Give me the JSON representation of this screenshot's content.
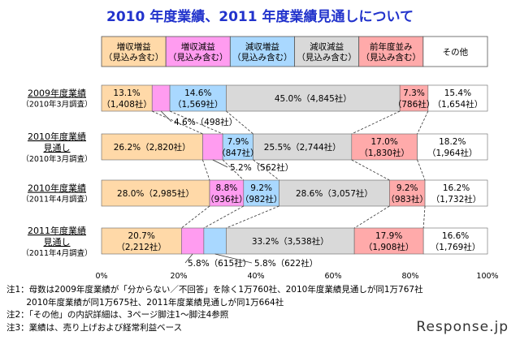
{
  "title": "2010 年度業績、2011 年度業績見通しについて",
  "chart_data": {
    "type": "bar",
    "orientation": "horizontal",
    "stacked": true,
    "categories": [
      {
        "lines": [
          "2009年度業績"
        ],
        "sub": "（2010年3月調査）"
      },
      {
        "lines": [
          "2010年度業績",
          "見通し"
        ],
        "sub": "（2010年3月調査）"
      },
      {
        "lines": [
          "2010年度業績"
        ],
        "sub": "（2011年4月調査）"
      },
      {
        "lines": [
          "2011年度業績",
          "見通し"
        ],
        "sub": "（2011年4月調査）"
      }
    ],
    "series": [
      {
        "name": "増収増益（見込み含む）",
        "header": [
          "増収増益",
          "（見込み含む）"
        ],
        "color": "#ffd9a8",
        "values": [
          13.1,
          26.2,
          28.0,
          20.7
        ],
        "labels": [
          [
            "13.1%",
            "（1,408社）"
          ],
          [
            "26.2%（2,820社）"
          ],
          [
            "28.0%（2,985社）"
          ],
          [
            "20.7%",
            "（2,212社）"
          ]
        ]
      },
      {
        "name": "増収減益（見込み含む）",
        "header": [
          "増収減益",
          "（見込み含む）"
        ],
        "color": "#ff9cf0",
        "values": [
          4.6,
          5.2,
          8.8,
          5.8
        ],
        "labels": [
          [
            "4.6%（498社）"
          ],
          [
            "5.2%（562社）"
          ],
          [
            "8.8%",
            "（936社）"
          ],
          [
            "5.8%（615社）"
          ]
        ]
      },
      {
        "name": "減収増益（見込み含む）",
        "header": [
          "減収増益",
          "（見込み含む）"
        ],
        "color": "#a9d8ff",
        "values": [
          14.6,
          7.9,
          9.2,
          5.8
        ],
        "labels": [
          [
            "14.6%",
            "（1,569社）"
          ],
          [
            "7.9%",
            "（847社）"
          ],
          [
            "9.2%",
            "（982社）"
          ],
          [
            "5.8%（622社）"
          ]
        ]
      },
      {
        "name": "減収減益（見込み含む）",
        "header": [
          "減収減益",
          "（見込み含む）"
        ],
        "color": "#d9d9d9",
        "values": [
          45.0,
          25.5,
          28.6,
          33.2
        ],
        "labels": [
          [
            "45.0%（4,845社）"
          ],
          [
            "25.5%（2,744社）"
          ],
          [
            "28.6%（3,057社）"
          ],
          [
            "33.2%（3,538社）"
          ]
        ]
      },
      {
        "name": "前年度並み（見込み含む）",
        "header": [
          "前年度並み",
          "（見込み含む）"
        ],
        "color": "#ffaaaa",
        "values": [
          7.3,
          17.0,
          9.2,
          17.9
        ],
        "labels": [
          [
            "7.3%",
            "（786社）"
          ],
          [
            "17.0%",
            "（1,830社）"
          ],
          [
            "9.2%",
            "（983社）"
          ],
          [
            "17.9%",
            "（1,908社）"
          ]
        ]
      },
      {
        "name": "その他",
        "header": [
          "その他"
        ],
        "color": "#ffffff",
        "values": [
          15.4,
          18.2,
          16.2,
          16.6
        ],
        "labels": [
          [
            "15.4%",
            "（1,654社）"
          ],
          [
            "18.2%",
            "（1,964社）"
          ],
          [
            "16.2%",
            "（1,732社）"
          ],
          [
            "16.6%",
            "（1,769社）"
          ]
        ]
      }
    ],
    "xlim": [
      0,
      100
    ],
    "ticks": [
      "0%",
      "20%",
      "40%",
      "60%",
      "80%",
      "100%"
    ],
    "tick_values": [
      0,
      20,
      40,
      60,
      80,
      100
    ],
    "grid": false,
    "legend": "top"
  },
  "notes": [
    "注1：母数は2009年度業績が「分からない／不回答」を除く1万760社、2010年度業績見通しが同1万767社",
    "　　 2010年度業績が同1万675社、2011年度業績見通しが同1万664社",
    "注2：「その他」の内訳詳細は、3ページ脚注1～脚注4参照",
    "注3：業績は、売り上げおよび経常利益ベース"
  ],
  "watermark": "Response.jp"
}
